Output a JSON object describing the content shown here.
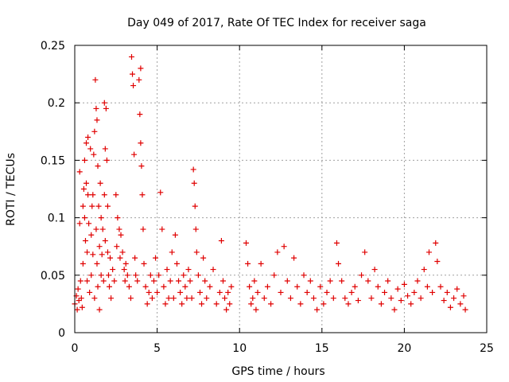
{
  "chart_data": {
    "type": "scatter",
    "title": "Day 049 of 2017, Rate Of TEC Index for receiver saga",
    "xlabel": "GPS time / hours",
    "ylabel": "ROTI / TECUs",
    "xlim": [
      0,
      25
    ],
    "ylim": [
      0,
      0.25
    ],
    "xticks": [
      "0",
      "5",
      "10",
      "15",
      "20",
      "25"
    ],
    "yticks": [
      "0",
      "0.05",
      "0.1",
      "0.15",
      "0.2",
      "0.25"
    ],
    "grid": true,
    "marker": "+",
    "color": "#e00000",
    "series": [
      {
        "name": "ROTI",
        "points": [
          [
            0.0,
            0.025
          ],
          [
            0.1,
            0.032
          ],
          [
            0.15,
            0.02
          ],
          [
            0.2,
            0.038
          ],
          [
            0.25,
            0.028
          ],
          [
            0.3,
            0.14
          ],
          [
            0.3,
            0.095
          ],
          [
            0.35,
            0.045
          ],
          [
            0.4,
            0.03
          ],
          [
            0.45,
            0.022
          ],
          [
            0.5,
            0.06
          ],
          [
            0.5,
            0.11
          ],
          [
            0.55,
            0.125
          ],
          [
            0.6,
            0.15
          ],
          [
            0.6,
            0.1
          ],
          [
            0.65,
            0.08
          ],
          [
            0.7,
            0.165
          ],
          [
            0.7,
            0.13
          ],
          [
            0.75,
            0.07
          ],
          [
            0.75,
            0.045
          ],
          [
            0.8,
            0.17
          ],
          [
            0.8,
            0.12
          ],
          [
            0.85,
            0.095
          ],
          [
            0.9,
            0.035
          ],
          [
            0.95,
            0.16
          ],
          [
            1.0,
            0.05
          ],
          [
            1.0,
            0.085
          ],
          [
            1.05,
            0.11
          ],
          [
            1.1,
            0.12
          ],
          [
            1.1,
            0.068
          ],
          [
            1.15,
            0.155
          ],
          [
            1.2,
            0.175
          ],
          [
            1.2,
            0.03
          ],
          [
            1.25,
            0.22
          ],
          [
            1.3,
            0.195
          ],
          [
            1.3,
            0.09
          ],
          [
            1.35,
            0.185
          ],
          [
            1.35,
            0.06
          ],
          [
            1.4,
            0.145
          ],
          [
            1.4,
            0.04
          ],
          [
            1.45,
            0.11
          ],
          [
            1.5,
            0.075
          ],
          [
            1.5,
            0.02
          ],
          [
            1.55,
            0.13
          ],
          [
            1.6,
            0.1
          ],
          [
            1.6,
            0.05
          ],
          [
            1.65,
            0.068
          ],
          [
            1.7,
            0.09
          ],
          [
            1.75,
            0.045
          ],
          [
            1.8,
            0.2
          ],
          [
            1.8,
            0.12
          ],
          [
            1.85,
            0.16
          ],
          [
            1.85,
            0.08
          ],
          [
            1.9,
            0.195
          ],
          [
            1.95,
            0.15
          ],
          [
            2.0,
            0.11
          ],
          [
            2.0,
            0.07
          ],
          [
            2.05,
            0.05
          ],
          [
            2.1,
            0.04
          ],
          [
            2.15,
            0.065
          ],
          [
            2.2,
            0.03
          ],
          [
            2.3,
            0.055
          ],
          [
            2.4,
            0.045
          ],
          [
            2.5,
            0.12
          ],
          [
            2.55,
            0.075
          ],
          [
            2.6,
            0.1
          ],
          [
            2.7,
            0.09
          ],
          [
            2.75,
            0.065
          ],
          [
            2.8,
            0.085
          ],
          [
            2.9,
            0.07
          ],
          [
            3.0,
            0.055
          ],
          [
            3.05,
            0.045
          ],
          [
            3.1,
            0.06
          ],
          [
            3.2,
            0.05
          ],
          [
            3.3,
            0.04
          ],
          [
            3.4,
            0.03
          ],
          [
            3.45,
            0.24
          ],
          [
            3.5,
            0.225
          ],
          [
            3.55,
            0.215
          ],
          [
            3.6,
            0.155
          ],
          [
            3.65,
            0.065
          ],
          [
            3.7,
            0.05
          ],
          [
            3.8,
            0.045
          ],
          [
            3.9,
            0.22
          ],
          [
            3.95,
            0.19
          ],
          [
            4.0,
            0.23
          ],
          [
            4.0,
            0.165
          ],
          [
            4.05,
            0.145
          ],
          [
            4.1,
            0.12
          ],
          [
            4.15,
            0.09
          ],
          [
            4.2,
            0.06
          ],
          [
            4.3,
            0.04
          ],
          [
            4.4,
            0.025
          ],
          [
            4.5,
            0.035
          ],
          [
            4.6,
            0.05
          ],
          [
            4.7,
            0.03
          ],
          [
            4.8,
            0.045
          ],
          [
            4.9,
            0.065
          ],
          [
            5.0,
            0.035
          ],
          [
            5.1,
            0.05
          ],
          [
            5.2,
            0.122
          ],
          [
            5.3,
            0.09
          ],
          [
            5.4,
            0.04
          ],
          [
            5.5,
            0.025
          ],
          [
            5.6,
            0.055
          ],
          [
            5.7,
            0.03
          ],
          [
            5.8,
            0.045
          ],
          [
            5.9,
            0.07
          ],
          [
            6.0,
            0.03
          ],
          [
            6.1,
            0.085
          ],
          [
            6.2,
            0.06
          ],
          [
            6.3,
            0.045
          ],
          [
            6.4,
            0.035
          ],
          [
            6.5,
            0.025
          ],
          [
            6.6,
            0.05
          ],
          [
            6.7,
            0.04
          ],
          [
            6.8,
            0.03
          ],
          [
            6.9,
            0.055
          ],
          [
            7.0,
            0.045
          ],
          [
            7.1,
            0.03
          ],
          [
            7.2,
            0.142
          ],
          [
            7.25,
            0.13
          ],
          [
            7.3,
            0.11
          ],
          [
            7.35,
            0.09
          ],
          [
            7.4,
            0.07
          ],
          [
            7.5,
            0.05
          ],
          [
            7.6,
            0.035
          ],
          [
            7.7,
            0.025
          ],
          [
            7.8,
            0.065
          ],
          [
            7.9,
            0.045
          ],
          [
            8.0,
            0.03
          ],
          [
            8.2,
            0.04
          ],
          [
            8.4,
            0.055
          ],
          [
            8.6,
            0.025
          ],
          [
            8.8,
            0.035
          ],
          [
            8.9,
            0.08
          ],
          [
            9.0,
            0.045
          ],
          [
            9.1,
            0.03
          ],
          [
            9.2,
            0.02
          ],
          [
            9.3,
            0.035
          ],
          [
            9.4,
            0.025
          ],
          [
            9.5,
            0.04
          ],
          [
            10.4,
            0.078
          ],
          [
            10.5,
            0.06
          ],
          [
            10.6,
            0.04
          ],
          [
            10.7,
            0.025
          ],
          [
            10.8,
            0.03
          ],
          [
            10.9,
            0.045
          ],
          [
            11.0,
            0.02
          ],
          [
            11.1,
            0.035
          ],
          [
            11.3,
            0.06
          ],
          [
            11.5,
            0.03
          ],
          [
            11.7,
            0.04
          ],
          [
            11.9,
            0.025
          ],
          [
            12.1,
            0.05
          ],
          [
            12.3,
            0.07
          ],
          [
            12.5,
            0.035
          ],
          [
            12.7,
            0.075
          ],
          [
            12.9,
            0.045
          ],
          [
            13.1,
            0.03
          ],
          [
            13.3,
            0.065
          ],
          [
            13.5,
            0.04
          ],
          [
            13.7,
            0.025
          ],
          [
            13.9,
            0.05
          ],
          [
            14.1,
            0.035
          ],
          [
            14.3,
            0.045
          ],
          [
            14.5,
            0.03
          ],
          [
            14.7,
            0.02
          ],
          [
            14.9,
            0.04
          ],
          [
            15.1,
            0.025
          ],
          [
            15.3,
            0.035
          ],
          [
            15.5,
            0.045
          ],
          [
            15.7,
            0.03
          ],
          [
            15.9,
            0.078
          ],
          [
            16.0,
            0.06
          ],
          [
            16.2,
            0.045
          ],
          [
            16.4,
            0.03
          ],
          [
            16.6,
            0.025
          ],
          [
            16.8,
            0.035
          ],
          [
            17.0,
            0.04
          ],
          [
            17.2,
            0.028
          ],
          [
            17.4,
            0.05
          ],
          [
            17.6,
            0.07
          ],
          [
            17.8,
            0.045
          ],
          [
            18.0,
            0.03
          ],
          [
            18.2,
            0.055
          ],
          [
            18.4,
            0.04
          ],
          [
            18.6,
            0.025
          ],
          [
            18.8,
            0.035
          ],
          [
            19.0,
            0.045
          ],
          [
            19.2,
            0.03
          ],
          [
            19.4,
            0.02
          ],
          [
            19.6,
            0.038
          ],
          [
            19.8,
            0.028
          ],
          [
            20.0,
            0.042
          ],
          [
            20.2,
            0.032
          ],
          [
            20.4,
            0.025
          ],
          [
            20.6,
            0.035
          ],
          [
            20.8,
            0.045
          ],
          [
            21.0,
            0.03
          ],
          [
            21.2,
            0.055
          ],
          [
            21.4,
            0.04
          ],
          [
            21.5,
            0.07
          ],
          [
            21.7,
            0.035
          ],
          [
            21.9,
            0.078
          ],
          [
            22.0,
            0.062
          ],
          [
            22.2,
            0.04
          ],
          [
            22.4,
            0.028
          ],
          [
            22.6,
            0.035
          ],
          [
            22.8,
            0.022
          ],
          [
            23.0,
            0.03
          ],
          [
            23.2,
            0.038
          ],
          [
            23.4,
            0.025
          ],
          [
            23.6,
            0.032
          ],
          [
            23.7,
            0.02
          ]
        ]
      }
    ]
  }
}
